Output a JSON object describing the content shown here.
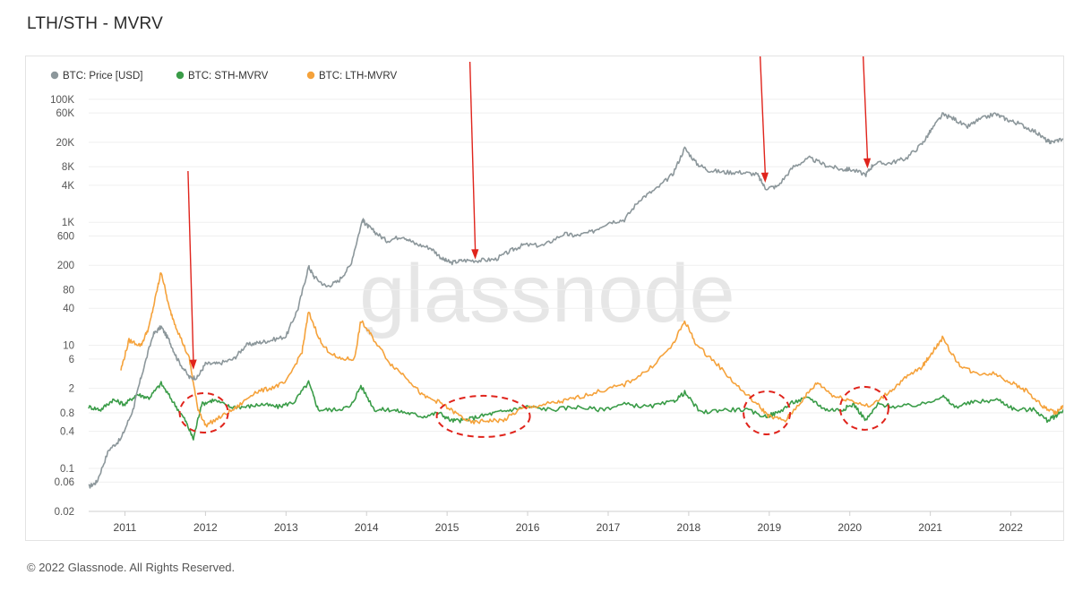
{
  "header": {
    "title": "LTH/STH - MVRV"
  },
  "footer": {
    "copyright": "© 2022 Glassnode. All Rights Reserved."
  },
  "watermark": "glassnode",
  "chart_data": {
    "type": "line",
    "title": "LTH/STH - MVRV",
    "yscale": "log",
    "ylim": [
      0.02,
      130000
    ],
    "y_tick_labels": [
      "100K",
      "60K",
      "20K",
      "8K",
      "4K",
      "1K",
      "600",
      "200",
      "80",
      "40",
      "10",
      "6",
      "2",
      "0.8",
      "0.4",
      "0.1",
      "0.06",
      "0.02"
    ],
    "y_tick_values": [
      100000,
      60000,
      20000,
      8000,
      4000,
      1000,
      600,
      200,
      80,
      40,
      10,
      6,
      2,
      0.8,
      0.4,
      0.1,
      0.06,
      0.02
    ],
    "x_tick_labels": [
      "2011",
      "2012",
      "2013",
      "2014",
      "2015",
      "2016",
      "2017",
      "2018",
      "2019",
      "2020",
      "2021",
      "2022"
    ],
    "x_tick_values": [
      2011.0,
      2012.0,
      2013.0,
      2014.0,
      2015.0,
      2016.0,
      2017.0,
      2018.0,
      2019.0,
      2020.0,
      2021.0,
      2022.0
    ],
    "xlim": [
      2010.55,
      2022.65
    ],
    "grid": "horizontal",
    "legend_position": "top-left",
    "series": [
      {
        "name": "BTC: Price [USD]",
        "color": "#8c979b",
        "x": [
          2010.55,
          2010.65,
          2010.8,
          2010.95,
          2011.1,
          2011.2,
          2011.35,
          2011.45,
          2011.55,
          2011.65,
          2011.8,
          2011.9,
          2012.0,
          2012.15,
          2012.35,
          2012.5,
          2012.65,
          2012.8,
          2013.0,
          2013.15,
          2013.28,
          2013.35,
          2013.5,
          2013.65,
          2013.8,
          2013.95,
          2014.0,
          2014.1,
          2014.25,
          2014.45,
          2014.6,
          2014.8,
          2014.95,
          2015.05,
          2015.2,
          2015.4,
          2015.6,
          2015.8,
          2015.95,
          2016.2,
          2016.45,
          2016.6,
          2016.8,
          2017.0,
          2017.2,
          2017.4,
          2017.6,
          2017.8,
          2017.95,
          2018.1,
          2018.25,
          2018.45,
          2018.65,
          2018.85,
          2018.95,
          2019.1,
          2019.3,
          2019.5,
          2019.7,
          2019.9,
          2020.0,
          2020.2,
          2020.3,
          2020.5,
          2020.7,
          2020.9,
          2021.0,
          2021.15,
          2021.3,
          2021.45,
          2021.6,
          2021.8,
          2021.95,
          2022.1,
          2022.3,
          2022.45,
          2022.5,
          2022.65
        ],
        "values": [
          0.05,
          0.06,
          0.2,
          0.3,
          0.9,
          3,
          15,
          20,
          12,
          6,
          3,
          3,
          5,
          5,
          6,
          10,
          11,
          12,
          14,
          40,
          190,
          130,
          90,
          110,
          200,
          1100,
          900,
          700,
          500,
          600,
          450,
          380,
          250,
          220,
          240,
          240,
          250,
          350,
          430,
          420,
          650,
          600,
          700,
          1000,
          1100,
          2400,
          3500,
          6000,
          16000,
          9000,
          7000,
          6500,
          6500,
          6000,
          3600,
          3800,
          8000,
          11000,
          8500,
          7200,
          7300,
          6000,
          9000,
          9200,
          11000,
          19000,
          30000,
          56000,
          48000,
          35000,
          46000,
          58000,
          47000,
          40000,
          30000,
          21000,
          20000,
          23000
        ]
      },
      {
        "name": "BTC: STH-MVRV",
        "color": "#3a9c48",
        "x": [
          2010.55,
          2010.7,
          2010.85,
          2011.0,
          2011.15,
          2011.3,
          2011.45,
          2011.6,
          2011.75,
          2011.85,
          2011.95,
          2012.1,
          2012.3,
          2012.5,
          2012.7,
          2012.9,
          2013.1,
          2013.28,
          2013.4,
          2013.6,
          2013.8,
          2013.93,
          2014.1,
          2014.3,
          2014.5,
          2014.7,
          2014.9,
          2015.05,
          2015.2,
          2015.4,
          2015.6,
          2015.8,
          2016.0,
          2016.3,
          2016.6,
          2016.9,
          2017.2,
          2017.5,
          2017.8,
          2017.95,
          2018.15,
          2018.4,
          2018.7,
          2018.95,
          2019.1,
          2019.3,
          2019.5,
          2019.7,
          2019.9,
          2020.05,
          2020.2,
          2020.35,
          2020.6,
          2020.9,
          2021.15,
          2021.3,
          2021.55,
          2021.85,
          2022.05,
          2022.3,
          2022.45,
          2022.55,
          2022.65
        ],
        "values": [
          1.0,
          0.9,
          1.3,
          1.1,
          1.6,
          1.4,
          2.4,
          1.2,
          0.6,
          0.3,
          1.1,
          1.3,
          1.0,
          1.0,
          1.1,
          1.0,
          1.2,
          2.5,
          0.9,
          0.9,
          1.0,
          2.2,
          0.9,
          0.9,
          0.8,
          0.7,
          0.8,
          0.6,
          0.6,
          0.7,
          0.8,
          0.9,
          1.0,
          0.9,
          1.0,
          0.9,
          1.1,
          1.0,
          1.2,
          1.7,
          0.8,
          0.9,
          0.9,
          0.7,
          0.8,
          1.2,
          1.4,
          0.9,
          0.9,
          1.1,
          0.6,
          1.1,
          1.0,
          1.1,
          1.5,
          1.0,
          1.2,
          1.3,
          0.9,
          0.9,
          0.6,
          0.7,
          0.9
        ]
      },
      {
        "name": "BTC: LTH-MVRV",
        "color": "#f5a23b",
        "x": [
          2010.95,
          2011.05,
          2011.2,
          2011.3,
          2011.4,
          2011.45,
          2011.55,
          2011.65,
          2011.8,
          2011.9,
          2012.0,
          2012.2,
          2012.4,
          2012.6,
          2012.8,
          2013.0,
          2013.2,
          2013.28,
          2013.45,
          2013.65,
          2013.85,
          2013.93,
          2014.05,
          2014.3,
          2014.5,
          2014.7,
          2014.9,
          2015.1,
          2015.3,
          2015.5,
          2015.7,
          2015.9,
          2016.2,
          2016.4,
          2016.6,
          2016.9,
          2017.2,
          2017.5,
          2017.8,
          2017.95,
          2018.1,
          2018.35,
          2018.6,
          2018.85,
          2019.0,
          2019.2,
          2019.45,
          2019.6,
          2019.8,
          2020.0,
          2020.25,
          2020.5,
          2020.7,
          2020.9,
          2021.0,
          2021.15,
          2021.35,
          2021.55,
          2021.8,
          2022.0,
          2022.2,
          2022.4,
          2022.55,
          2022.65
        ],
        "values": [
          4,
          12,
          10,
          20,
          80,
          160,
          40,
          18,
          6,
          1.0,
          0.5,
          0.7,
          1.0,
          1.7,
          2.0,
          2.5,
          8,
          35,
          10,
          6,
          6,
          25,
          15,
          5,
          3,
          1.5,
          1.2,
          0.8,
          0.55,
          0.6,
          0.6,
          0.9,
          1.1,
          1.2,
          1.4,
          1.8,
          2.3,
          4,
          10,
          25,
          10,
          5,
          2.2,
          1.1,
          0.7,
          0.6,
          1.5,
          2.5,
          1.5,
          1.3,
          1.0,
          1.8,
          3,
          4.5,
          7,
          13,
          5,
          3.5,
          3.5,
          2.5,
          1.8,
          1.0,
          0.8,
          1.0
        ]
      }
    ],
    "annotations": [
      {
        "type": "arrow",
        "target_x": 2011.85,
        "target_y": 4,
        "label": ""
      },
      {
        "type": "arrow",
        "target_x": 2015.35,
        "target_y": 250,
        "label": ""
      },
      {
        "type": "arrow",
        "target_x": 2018.95,
        "target_y": 4400,
        "label": ""
      },
      {
        "type": "arrow",
        "target_x": 2020.22,
        "target_y": 7500,
        "label": ""
      },
      {
        "type": "dashed-ellipse",
        "center_x": 2011.98,
        "center_y": 0.8
      },
      {
        "type": "dashed-ellipse",
        "center_x": 2015.45,
        "center_y": 0.7
      },
      {
        "type": "dashed-ellipse",
        "center_x": 2018.97,
        "center_y": 0.8
      },
      {
        "type": "dashed-ellipse",
        "center_x": 2020.18,
        "center_y": 0.95
      }
    ]
  }
}
